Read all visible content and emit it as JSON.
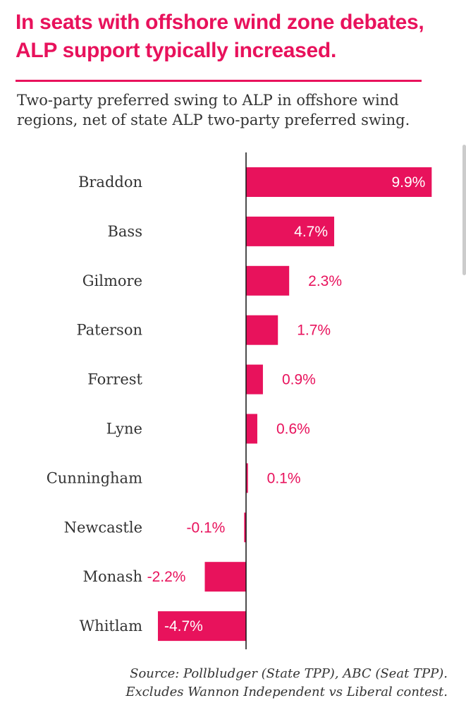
{
  "header": {
    "title_line1": "In seats with offshore wind zone debates,",
    "title_line2": "ALP support typically increased.",
    "subtitle_line1": "Two-party preferred swing to ALP in offshore wind",
    "subtitle_line2": "regions, net of state ALP two-party preferred swing."
  },
  "footer": {
    "source_line1": "Source: Pollbludger (State TPP), ABC (Seat TPP).",
    "source_line2": "Excludes Wannon Independent vs Liberal contest."
  },
  "colors": {
    "accent": "#e8125c",
    "text": "#333333",
    "label_inside": "#ffffff"
  },
  "chart_data": {
    "type": "bar",
    "orientation": "horizontal",
    "categories": [
      "Braddon",
      "Bass",
      "Gilmore",
      "Paterson",
      "Forrest",
      "Lyne",
      "Cunningham",
      "Newcastle",
      "Monash",
      "Whitlam"
    ],
    "values": [
      9.9,
      4.7,
      2.3,
      1.7,
      0.9,
      0.6,
      0.1,
      -0.1,
      -2.2,
      -4.7
    ],
    "value_labels": [
      "9.9%",
      "4.7%",
      "2.3%",
      "1.7%",
      "0.9%",
      "0.6%",
      "0.1%",
      "-0.1%",
      "-2.2%",
      "-4.7%"
    ],
    "xlim": [
      -4.7,
      9.9
    ],
    "unit": "%",
    "grid": false,
    "legend": "none"
  }
}
